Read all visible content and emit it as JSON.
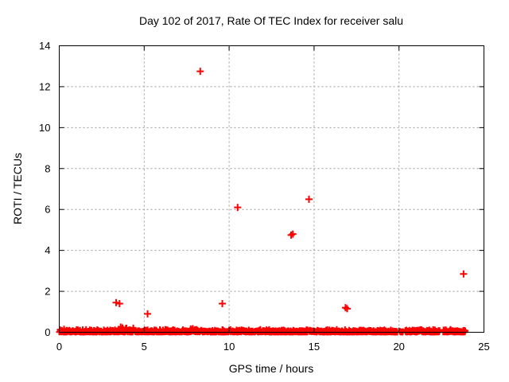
{
  "chart_data": {
    "type": "scatter",
    "title": "Day 102 of 2017, Rate Of TEC Index for receiver salu",
    "xlabel": "GPS time / hours",
    "ylabel": "ROTI / TECUs",
    "xlim": [
      0,
      25
    ],
    "ylim": [
      0,
      14
    ],
    "x_ticks": [
      0,
      5,
      10,
      15,
      20,
      25
    ],
    "y_ticks": [
      0,
      2,
      4,
      6,
      8,
      10,
      12,
      14
    ],
    "grid": true,
    "legend": "none",
    "marker": {
      "symbol": "plus",
      "color": "#ff0000",
      "size": 9,
      "stroke_width": 2
    },
    "grid_color": "#999999",
    "axis_color": "#000000",
    "background_color": "#ffffff",
    "outlier_points": [
      {
        "x": 3.35,
        "y": 1.45
      },
      {
        "x": 3.55,
        "y": 1.4
      },
      {
        "x": 5.2,
        "y": 0.9
      },
      {
        "x": 8.3,
        "y": 12.75
      },
      {
        "x": 9.6,
        "y": 1.4
      },
      {
        "x": 10.5,
        "y": 6.1
      },
      {
        "x": 13.65,
        "y": 4.75
      },
      {
        "x": 13.75,
        "y": 4.8
      },
      {
        "x": 14.7,
        "y": 6.5
      },
      {
        "x": 16.85,
        "y": 1.2
      },
      {
        "x": 16.95,
        "y": 1.15
      },
      {
        "x": 23.8,
        "y": 2.85
      }
    ],
    "baseline_band": {
      "description": "dense cluster of ROTI values near 0 spanning almost the whole day",
      "y_typical_max": 0.16,
      "point_step_hours": 0.02,
      "segments": [
        [
          0.0,
          14.62
        ],
        [
          14.72,
          19.9
        ],
        [
          20.05,
          20.23
        ],
        [
          20.37,
          22.4
        ],
        [
          22.6,
          23.9
        ]
      ],
      "bumps": [
        {
          "x_range": [
            3.5,
            4.0
          ],
          "y_max": 0.4
        },
        {
          "x_range": [
            4.15,
            4.45
          ],
          "y_max": 0.25
        },
        {
          "x_range": [
            7.7,
            8.1
          ],
          "y_max": 0.3
        }
      ]
    }
  }
}
